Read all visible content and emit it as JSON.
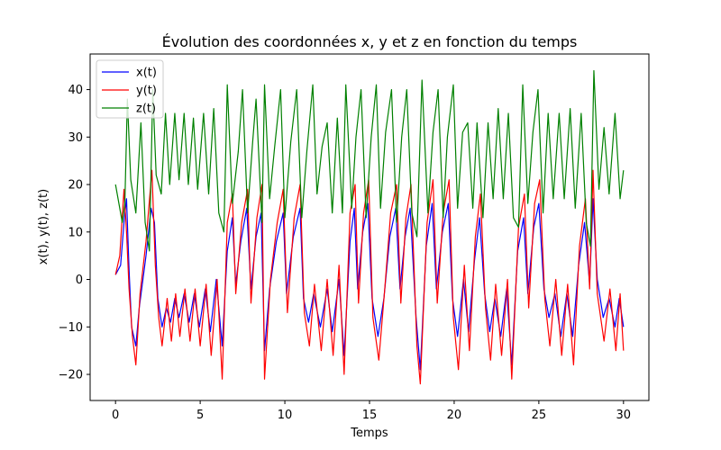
{
  "chart_data": {
    "type": "line",
    "title": "Évolution des coordonnées x, y et z en fonction du temps",
    "xlabel": "Temps",
    "ylabel": "x(t), y(t), z(t)",
    "xlim": [
      -1.5,
      31.5
    ],
    "ylim": [
      -25.5,
      47.5
    ],
    "xticks": [
      0,
      5,
      10,
      15,
      20,
      25,
      30
    ],
    "yticks": [
      -20,
      -10,
      0,
      10,
      20,
      30,
      40
    ],
    "xtick_labels": [
      "0",
      "5",
      "10",
      "15",
      "20",
      "25",
      "30"
    ],
    "ytick_labels": [
      "−20",
      "−10",
      "0",
      "10",
      "20",
      "30",
      "40"
    ],
    "grid": false,
    "legend_position": "top-left",
    "series": [
      {
        "name": "x(t)",
        "color": "#0000ff",
        "points": [
          [
            0,
            1
          ],
          [
            0.3,
            3
          ],
          [
            0.5,
            12
          ],
          [
            0.65,
            17
          ],
          [
            0.8,
            2
          ],
          [
            0.95,
            -10
          ],
          [
            1.2,
            -14
          ],
          [
            1.4,
            -6
          ],
          [
            1.8,
            5
          ],
          [
            2.1,
            15
          ],
          [
            2.3,
            12
          ],
          [
            2.5,
            -4
          ],
          [
            2.75,
            -10
          ],
          [
            3.0,
            -6
          ],
          [
            3.25,
            -9
          ],
          [
            3.5,
            -4
          ],
          [
            3.75,
            -8
          ],
          [
            4.05,
            -3
          ],
          [
            4.35,
            -9
          ],
          [
            4.65,
            -3
          ],
          [
            4.95,
            -10
          ],
          [
            5.3,
            -2
          ],
          [
            5.6,
            -11
          ],
          [
            5.95,
            0
          ],
          [
            6.3,
            -14
          ],
          [
            6.6,
            6
          ],
          [
            6.9,
            13
          ],
          [
            7.1,
            -1
          ],
          [
            7.4,
            8
          ],
          [
            7.75,
            15
          ],
          [
            8.0,
            -2
          ],
          [
            8.3,
            9
          ],
          [
            8.6,
            14
          ],
          [
            8.8,
            -15
          ],
          [
            9.1,
            -2
          ],
          [
            9.5,
            8
          ],
          [
            9.9,
            14
          ],
          [
            10.1,
            -3
          ],
          [
            10.5,
            9
          ],
          [
            10.9,
            15
          ],
          [
            11.1,
            -4
          ],
          [
            11.4,
            -9
          ],
          [
            11.7,
            -3
          ],
          [
            12.1,
            -10
          ],
          [
            12.5,
            -2
          ],
          [
            12.8,
            -11
          ],
          [
            13.2,
            0
          ],
          [
            13.5,
            -16
          ],
          [
            13.85,
            8
          ],
          [
            14.1,
            15
          ],
          [
            14.3,
            -2
          ],
          [
            14.6,
            10
          ],
          [
            14.9,
            16
          ],
          [
            15.15,
            -4
          ],
          [
            15.5,
            -12
          ],
          [
            15.85,
            -4
          ],
          [
            16.2,
            9
          ],
          [
            16.55,
            15
          ],
          [
            16.8,
            -2
          ],
          [
            17.1,
            9
          ],
          [
            17.4,
            15
          ],
          [
            17.75,
            -8
          ],
          [
            18.0,
            -19
          ],
          [
            18.35,
            7
          ],
          [
            18.7,
            16
          ],
          [
            18.95,
            -2
          ],
          [
            19.3,
            10
          ],
          [
            19.65,
            16
          ],
          [
            19.9,
            -4
          ],
          [
            20.2,
            -12
          ],
          [
            20.55,
            0
          ],
          [
            20.85,
            -11
          ],
          [
            21.2,
            4
          ],
          [
            21.5,
            13
          ],
          [
            21.8,
            -3
          ],
          [
            22.1,
            -11
          ],
          [
            22.4,
            -4
          ],
          [
            22.75,
            -12
          ],
          [
            23.1,
            -2
          ],
          [
            23.4,
            -18
          ],
          [
            23.75,
            6
          ],
          [
            24.1,
            13
          ],
          [
            24.35,
            -3
          ],
          [
            24.7,
            11
          ],
          [
            25.0,
            16
          ],
          [
            25.3,
            -2
          ],
          [
            25.6,
            -8
          ],
          [
            25.95,
            -3
          ],
          [
            26.3,
            -12
          ],
          [
            26.65,
            -3
          ],
          [
            27.0,
            -12
          ],
          [
            27.35,
            3
          ],
          [
            27.7,
            12
          ],
          [
            28.0,
            -1
          ],
          [
            28.2,
            17
          ],
          [
            28.45,
            0
          ],
          [
            28.8,
            -8
          ],
          [
            29.15,
            -4
          ],
          [
            29.5,
            -10
          ],
          [
            29.75,
            -4
          ],
          [
            30.0,
            -10
          ]
        ]
      },
      {
        "name": "y(t)",
        "color": "#ff0000",
        "points": [
          [
            0,
            1
          ],
          [
            0.25,
            5
          ],
          [
            0.5,
            19
          ],
          [
            0.65,
            10
          ],
          [
            0.8,
            -2
          ],
          [
            1.0,
            -12
          ],
          [
            1.2,
            -18
          ],
          [
            1.45,
            -3
          ],
          [
            1.8,
            8
          ],
          [
            2.15,
            23
          ],
          [
            2.35,
            3
          ],
          [
            2.55,
            -8
          ],
          [
            2.75,
            -14
          ],
          [
            3.05,
            -4
          ],
          [
            3.3,
            -13
          ],
          [
            3.55,
            -3
          ],
          [
            3.8,
            -12
          ],
          [
            4.1,
            -2
          ],
          [
            4.4,
            -13
          ],
          [
            4.7,
            -2
          ],
          [
            5.0,
            -14
          ],
          [
            5.35,
            -1
          ],
          [
            5.65,
            -16
          ],
          [
            6.0,
            0
          ],
          [
            6.3,
            -21
          ],
          [
            6.6,
            12
          ],
          [
            6.9,
            18
          ],
          [
            7.1,
            -3
          ],
          [
            7.45,
            12
          ],
          [
            7.8,
            19
          ],
          [
            8.0,
            -5
          ],
          [
            8.35,
            13
          ],
          [
            8.65,
            20
          ],
          [
            8.8,
            -21
          ],
          [
            9.15,
            0
          ],
          [
            9.55,
            12
          ],
          [
            9.9,
            19
          ],
          [
            10.15,
            -7
          ],
          [
            10.55,
            13
          ],
          [
            10.9,
            20
          ],
          [
            11.15,
            -7
          ],
          [
            11.45,
            -14
          ],
          [
            11.75,
            -1
          ],
          [
            12.15,
            -15
          ],
          [
            12.5,
            0
          ],
          [
            12.85,
            -16
          ],
          [
            13.2,
            3
          ],
          [
            13.5,
            -20
          ],
          [
            13.85,
            14
          ],
          [
            14.15,
            20
          ],
          [
            14.35,
            -5
          ],
          [
            14.65,
            14
          ],
          [
            14.95,
            21
          ],
          [
            15.2,
            -8
          ],
          [
            15.55,
            -17
          ],
          [
            15.9,
            -2
          ],
          [
            16.25,
            14
          ],
          [
            16.6,
            20
          ],
          [
            16.85,
            -5
          ],
          [
            17.15,
            13
          ],
          [
            17.45,
            20
          ],
          [
            17.8,
            -14
          ],
          [
            18.0,
            -22
          ],
          [
            18.4,
            12
          ],
          [
            18.75,
            21
          ],
          [
            19.0,
            -5
          ],
          [
            19.35,
            14
          ],
          [
            19.7,
            21
          ],
          [
            19.95,
            -8
          ],
          [
            20.25,
            -19
          ],
          [
            20.6,
            3
          ],
          [
            20.9,
            -15
          ],
          [
            21.25,
            9
          ],
          [
            21.55,
            18
          ],
          [
            21.85,
            -6
          ],
          [
            22.15,
            -17
          ],
          [
            22.45,
            -1
          ],
          [
            22.8,
            -16
          ],
          [
            23.15,
            0
          ],
          [
            23.4,
            -21
          ],
          [
            23.8,
            11
          ],
          [
            24.15,
            18
          ],
          [
            24.4,
            -6
          ],
          [
            24.75,
            16
          ],
          [
            25.05,
            21
          ],
          [
            25.35,
            -4
          ],
          [
            25.65,
            -14
          ],
          [
            26.0,
            0
          ],
          [
            26.35,
            -16
          ],
          [
            26.7,
            -1
          ],
          [
            27.05,
            -18
          ],
          [
            27.4,
            7
          ],
          [
            27.75,
            17
          ],
          [
            28.0,
            -2
          ],
          [
            28.2,
            23
          ],
          [
            28.45,
            -3
          ],
          [
            28.85,
            -13
          ],
          [
            29.2,
            -2
          ],
          [
            29.55,
            -15
          ],
          [
            29.8,
            -3
          ],
          [
            30.0,
            -15
          ]
        ]
      },
      {
        "name": "z(t)",
        "color": "#008000",
        "points": [
          [
            0,
            20
          ],
          [
            0.4,
            12
          ],
          [
            0.55,
            16
          ],
          [
            0.7,
            38
          ],
          [
            0.9,
            21
          ],
          [
            1.2,
            14
          ],
          [
            1.5,
            33
          ],
          [
            1.75,
            12
          ],
          [
            2.0,
            6
          ],
          [
            2.2,
            40
          ],
          [
            2.4,
            22
          ],
          [
            2.7,
            18
          ],
          [
            2.95,
            35
          ],
          [
            3.2,
            20
          ],
          [
            3.5,
            35
          ],
          [
            3.75,
            21
          ],
          [
            4.05,
            35
          ],
          [
            4.3,
            20
          ],
          [
            4.6,
            34
          ],
          [
            4.85,
            19
          ],
          [
            5.2,
            35
          ],
          [
            5.5,
            18
          ],
          [
            5.8,
            36
          ],
          [
            6.1,
            14
          ],
          [
            6.4,
            10
          ],
          [
            6.6,
            41
          ],
          [
            6.9,
            16
          ],
          [
            7.25,
            27
          ],
          [
            7.5,
            40
          ],
          [
            7.8,
            14
          ],
          [
            8.1,
            29
          ],
          [
            8.3,
            38
          ],
          [
            8.65,
            12
          ],
          [
            8.8,
            41
          ],
          [
            9.1,
            17
          ],
          [
            9.4,
            28
          ],
          [
            9.75,
            40
          ],
          [
            10.0,
            13
          ],
          [
            10.35,
            29
          ],
          [
            10.7,
            40
          ],
          [
            11.0,
            13
          ],
          [
            11.3,
            27
          ],
          [
            11.65,
            41
          ],
          [
            11.9,
            18
          ],
          [
            12.2,
            28
          ],
          [
            12.5,
            33
          ],
          [
            12.8,
            14
          ],
          [
            13.1,
            34
          ],
          [
            13.4,
            14
          ],
          [
            13.6,
            41
          ],
          [
            13.95,
            15
          ],
          [
            14.2,
            30
          ],
          [
            14.5,
            40
          ],
          [
            14.8,
            13
          ],
          [
            15.1,
            30
          ],
          [
            15.4,
            41
          ],
          [
            15.65,
            15
          ],
          [
            15.95,
            31
          ],
          [
            16.3,
            40
          ],
          [
            16.6,
            12
          ],
          [
            16.9,
            30
          ],
          [
            17.2,
            40
          ],
          [
            17.5,
            14
          ],
          [
            17.8,
            9
          ],
          [
            18.1,
            42
          ],
          [
            18.45,
            14
          ],
          [
            18.75,
            31
          ],
          [
            19.05,
            40
          ],
          [
            19.35,
            13
          ],
          [
            19.6,
            30
          ],
          [
            19.95,
            41
          ],
          [
            20.2,
            15
          ],
          [
            20.5,
            31
          ],
          [
            20.8,
            33
          ],
          [
            21.1,
            15
          ],
          [
            21.35,
            33
          ],
          [
            21.7,
            13
          ],
          [
            22.0,
            33
          ],
          [
            22.3,
            17
          ],
          [
            22.6,
            36
          ],
          [
            22.9,
            17
          ],
          [
            23.2,
            35
          ],
          [
            23.5,
            13
          ],
          [
            23.8,
            11
          ],
          [
            24.05,
            41
          ],
          [
            24.35,
            16
          ],
          [
            24.65,
            31
          ],
          [
            24.95,
            40
          ],
          [
            25.25,
            14
          ],
          [
            25.55,
            35
          ],
          [
            25.85,
            17
          ],
          [
            26.2,
            35
          ],
          [
            26.5,
            17
          ],
          [
            26.85,
            36
          ],
          [
            27.15,
            15
          ],
          [
            27.5,
            35
          ],
          [
            27.8,
            12
          ],
          [
            28.05,
            7
          ],
          [
            28.25,
            44
          ],
          [
            28.55,
            19
          ],
          [
            28.85,
            32
          ],
          [
            29.15,
            18
          ],
          [
            29.5,
            35
          ],
          [
            29.8,
            17
          ],
          [
            30.0,
            23
          ]
        ]
      }
    ]
  }
}
